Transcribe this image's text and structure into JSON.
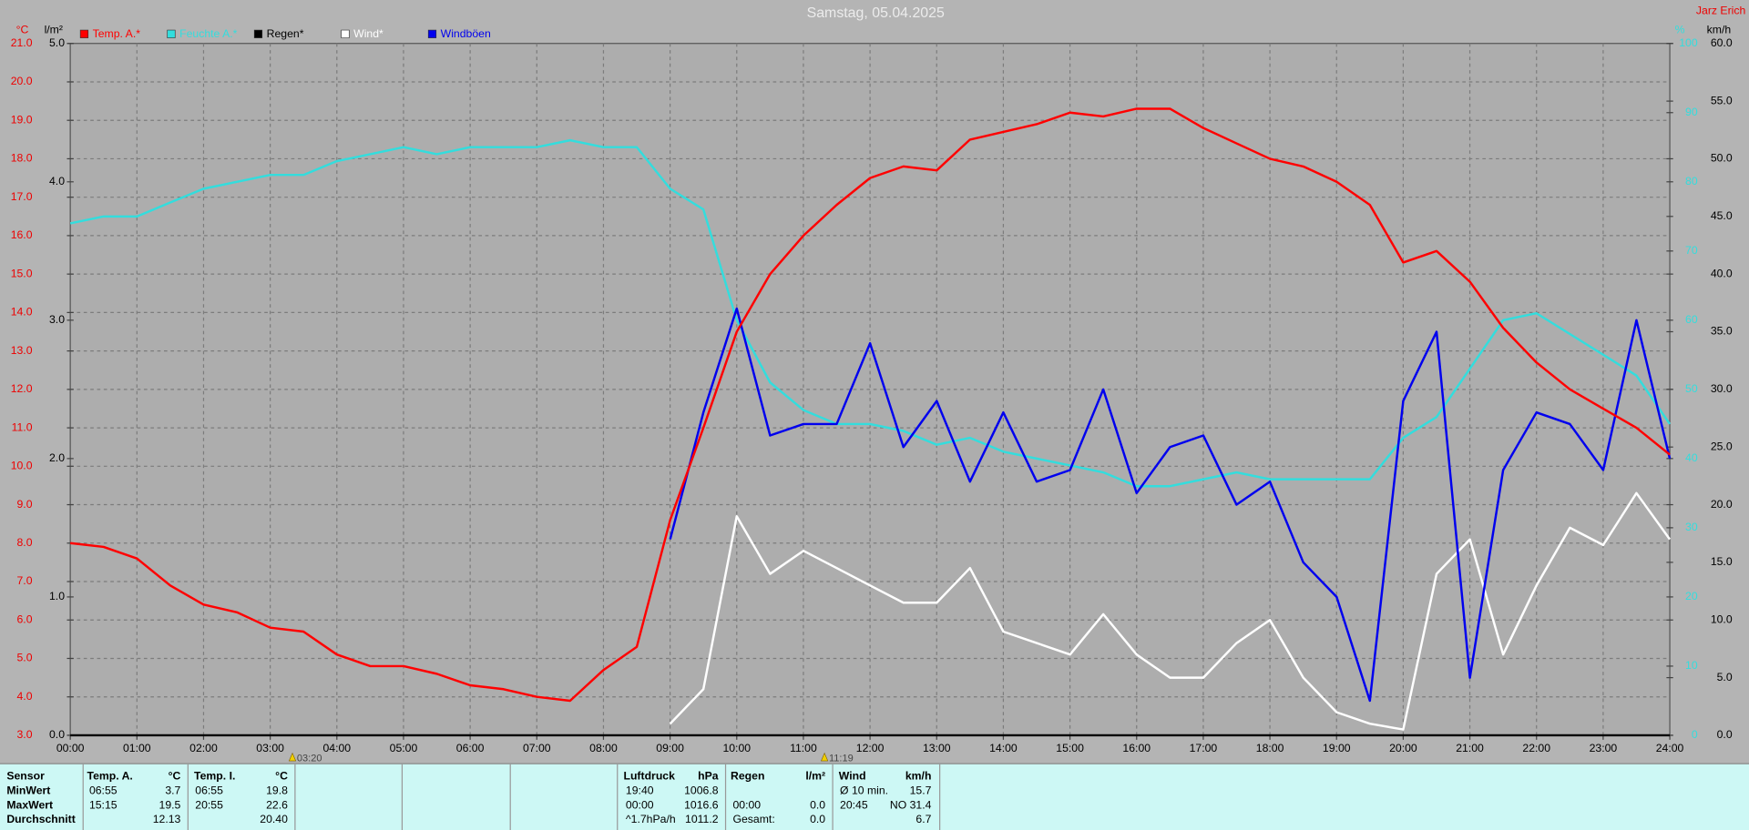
{
  "chart_data": {
    "type": "line",
    "title": "Samstag, 05.04.2025",
    "author": "Jarz Erich",
    "ylabel": "°C",
    "y2label": "l/m²",
    "y3label": "%",
    "y4label": "km/h",
    "xlim": [
      0,
      24
    ],
    "xticks": [
      {
        "value": 0,
        "label": "00:00"
      },
      {
        "value": 1,
        "label": "01:00"
      },
      {
        "value": 2,
        "label": "02:00"
      },
      {
        "value": 3,
        "label": "03:00"
      },
      {
        "value": 4,
        "label": "04:00"
      },
      {
        "value": 5,
        "label": "05:00"
      },
      {
        "value": 6,
        "label": "06:00"
      },
      {
        "value": 7,
        "label": "07:00"
      },
      {
        "value": 8,
        "label": "08:00"
      },
      {
        "value": 9,
        "label": "09:00"
      },
      {
        "value": 10,
        "label": "10:00"
      },
      {
        "value": 11,
        "label": "11:00"
      },
      {
        "value": 12,
        "label": "12:00"
      },
      {
        "value": 13,
        "label": "13:00"
      },
      {
        "value": 14,
        "label": "14:00"
      },
      {
        "value": 15,
        "label": "15:00"
      },
      {
        "value": 16,
        "label": "16:00"
      },
      {
        "value": 17,
        "label": "17:00"
      },
      {
        "value": 18,
        "label": "18:00"
      },
      {
        "value": 19,
        "label": "19:00"
      },
      {
        "value": 20,
        "label": "20:00"
      },
      {
        "value": 21,
        "label": "21:00"
      },
      {
        "value": 22,
        "label": "22:00"
      },
      {
        "value": 23,
        "label": "23:00"
      },
      {
        "value": 24,
        "label": "24:00"
      }
    ],
    "ylim": [
      3,
      21
    ],
    "yticks": [
      {
        "value": 3,
        "label": "3.0"
      },
      {
        "value": 4,
        "label": "4.0"
      },
      {
        "value": 5,
        "label": "5.0"
      },
      {
        "value": 6,
        "label": "6.0"
      },
      {
        "value": 7,
        "label": "7.0"
      },
      {
        "value": 8,
        "label": "8.0"
      },
      {
        "value": 9,
        "label": "9.0"
      },
      {
        "value": 10,
        "label": "10.0"
      },
      {
        "value": 11,
        "label": "11.0"
      },
      {
        "value": 12,
        "label": "12.0"
      },
      {
        "value": 13,
        "label": "13.0"
      },
      {
        "value": 14,
        "label": "14.0"
      },
      {
        "value": 15,
        "label": "15.0"
      },
      {
        "value": 16,
        "label": "16.0"
      },
      {
        "value": 17,
        "label": "17.0"
      },
      {
        "value": 18,
        "label": "18.0"
      },
      {
        "value": 19,
        "label": "19.0"
      },
      {
        "value": 20,
        "label": "20.0"
      },
      {
        "value": 21,
        "label": "21.0"
      }
    ],
    "y2lim": [
      0,
      5
    ],
    "y2ticks": [
      {
        "value": 0,
        "label": "0.0"
      },
      {
        "value": 1,
        "label": "1.0"
      },
      {
        "value": 2,
        "label": "2.0"
      },
      {
        "value": 3,
        "label": "3.0"
      },
      {
        "value": 4,
        "label": "4.0"
      },
      {
        "value": 5,
        "label": "5.0"
      }
    ],
    "y3lim": [
      0,
      100
    ],
    "y3ticks": [
      0,
      10,
      20,
      30,
      40,
      50,
      60,
      70,
      80,
      90,
      100
    ],
    "y4lim": [
      0,
      60
    ],
    "y4ticks": [
      {
        "value": 0,
        "label": "0.0"
      },
      {
        "value": 5,
        "label": "5.0"
      },
      {
        "value": 10,
        "label": "10.0"
      },
      {
        "value": 15,
        "label": "15.0"
      },
      {
        "value": 20,
        "label": "20.0"
      },
      {
        "value": 25,
        "label": "25.0"
      },
      {
        "value": 30,
        "label": "30.0"
      },
      {
        "value": 35,
        "label": "35.0"
      },
      {
        "value": 40,
        "label": "40.0"
      },
      {
        "value": 45,
        "label": "45.0"
      },
      {
        "value": 50,
        "label": "50.0"
      },
      {
        "value": 55,
        "label": "55.0"
      },
      {
        "value": 60,
        "label": "60.0"
      }
    ],
    "grid": true,
    "annotations": [
      {
        "x": 3.3333,
        "label": "03:20"
      },
      {
        "x": 11.3167,
        "label": "11:19"
      }
    ],
    "x": [
      0,
      0.5,
      1,
      1.5,
      2,
      2.5,
      3,
      3.5,
      4,
      4.5,
      5,
      5.5,
      6,
      6.5,
      7,
      7.5,
      8,
      8.5,
      9,
      9.5,
      10,
      10.5,
      11,
      11.5,
      12,
      12.5,
      13,
      13.5,
      14,
      14.5,
      15,
      15.5,
      16,
      16.5,
      17,
      17.5,
      18,
      18.5,
      19,
      19.5,
      20,
      20.5,
      21,
      21.5,
      22,
      22.5,
      23,
      23.5,
      24
    ],
    "series": [
      {
        "name": "Temp. A.*",
        "color": "#ff0000",
        "axis": "y",
        "values": [
          8.0,
          7.9,
          7.6,
          6.9,
          6.4,
          6.2,
          5.8,
          5.7,
          5.1,
          4.8,
          4.8,
          4.6,
          4.3,
          4.2,
          4.0,
          3.9,
          4.7,
          5.3,
          8.6,
          11.0,
          13.5,
          15.0,
          16.0,
          16.8,
          17.5,
          17.8,
          17.7,
          18.5,
          18.7,
          18.9,
          19.2,
          19.1,
          19.3,
          19.3,
          18.8,
          18.4,
          18.0,
          17.8,
          17.4,
          16.8,
          15.3,
          15.6,
          14.8,
          13.6,
          12.7,
          12.0,
          11.5,
          11.0,
          10.3
        ]
      },
      {
        "name": "Feuchte A.*",
        "color": "#33dddd",
        "axis": "y3",
        "values": [
          74,
          75,
          75,
          77,
          79,
          80,
          81,
          81,
          83,
          84,
          85,
          84,
          85,
          85,
          85,
          86,
          85,
          85,
          79,
          76,
          60,
          51,
          47,
          45,
          45,
          44,
          42,
          43,
          41,
          40,
          39,
          38,
          36,
          36,
          37,
          38,
          37,
          37,
          37,
          37,
          43,
          46,
          53,
          60,
          61,
          58,
          55,
          52,
          45
        ]
      },
      {
        "name": "Regen*",
        "color": "#000000",
        "axis": "y2",
        "values": [
          0,
          0,
          0,
          0,
          0,
          0,
          0,
          0,
          0,
          0,
          0,
          0,
          0,
          0,
          0,
          0,
          0,
          0,
          0,
          0,
          0,
          0,
          0,
          0,
          0,
          0,
          0,
          0,
          0,
          0,
          0,
          0,
          0,
          0,
          0,
          0,
          0,
          0,
          0,
          0,
          0,
          0,
          0,
          0,
          0,
          0,
          0,
          0,
          0
        ]
      },
      {
        "name": "Wind*",
        "color": "#ffffff",
        "axis": "y4",
        "values": [
          null,
          null,
          null,
          null,
          null,
          null,
          null,
          null,
          null,
          null,
          null,
          null,
          null,
          null,
          null,
          null,
          null,
          null,
          1,
          4,
          19,
          14,
          16,
          14.5,
          13,
          11.5,
          11.5,
          14.5,
          9,
          8,
          7,
          10.5,
          7,
          5,
          5,
          8,
          10,
          5,
          2,
          1,
          0.5,
          14,
          17,
          7,
          13,
          18,
          16.5,
          21,
          17
        ]
      },
      {
        "name": "Windböen",
        "color": "#0000ee",
        "axis": "y4",
        "values": [
          null,
          null,
          null,
          null,
          null,
          null,
          null,
          null,
          null,
          null,
          null,
          null,
          null,
          null,
          null,
          null,
          null,
          null,
          17,
          28,
          37,
          26,
          27,
          27,
          34,
          25,
          29,
          22,
          28,
          22,
          23,
          30,
          21,
          25,
          26,
          20,
          22,
          15,
          12,
          3,
          29,
          35,
          5,
          23,
          28,
          27,
          23,
          36,
          24
        ]
      }
    ]
  },
  "table": {
    "header": [
      "Sensor",
      "Temp. A.",
      "°C",
      "Temp. I.",
      "°C",
      "Luftdruck",
      "hPa",
      "Regen",
      "l/m²",
      "Wind",
      "km/h"
    ],
    "rows": [
      [
        "MinWert",
        "06:55",
        "3.7",
        "06:55",
        "19.8",
        "19:40",
        "1006.8",
        null,
        null,
        "Ø 10 min.",
        "15.7"
      ],
      [
        "MaxWert",
        "15:15",
        "19.5",
        "20:55",
        "22.6",
        "00:00",
        "1016.6",
        "00:00",
        "0.0",
        "20:45",
        "NO 31.4"
      ],
      [
        "Durchschnitt",
        null,
        "12.13",
        null,
        "20.40",
        "^1.7hPa/h",
        "1011.2",
        "Gesamt:",
        "0.0",
        null,
        "6.7"
      ]
    ]
  }
}
